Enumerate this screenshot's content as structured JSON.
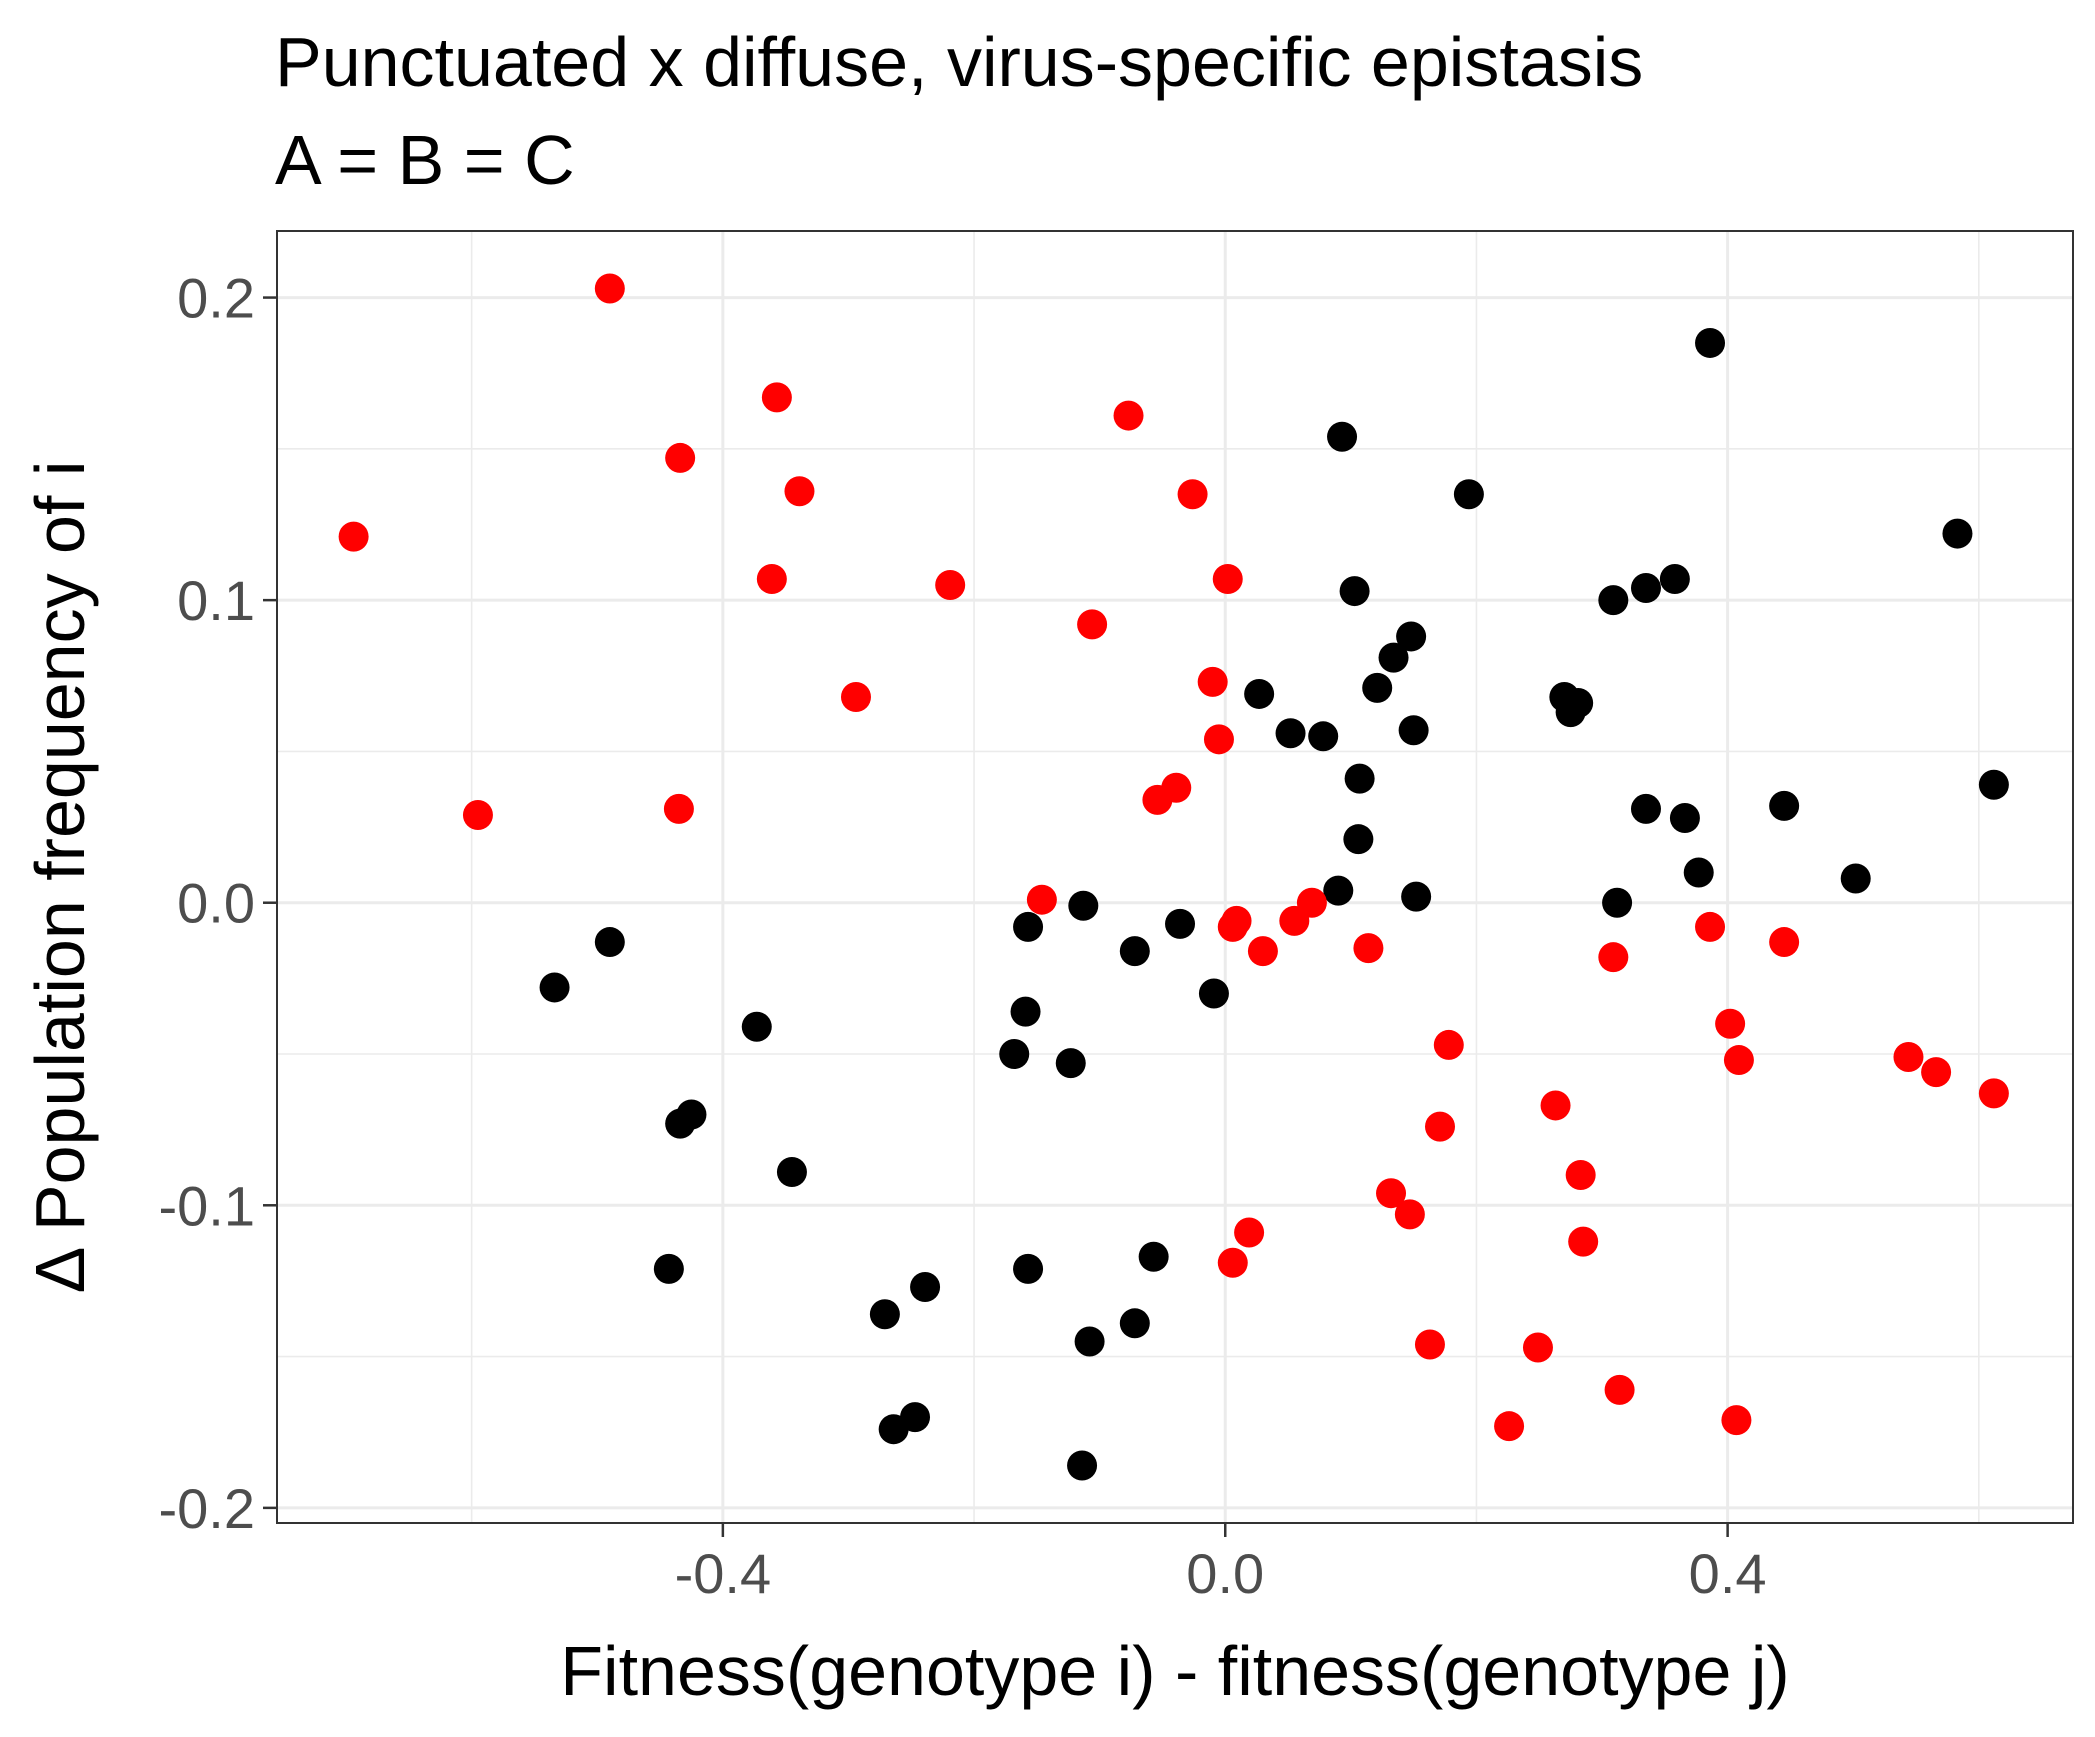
{
  "chart_data": {
    "type": "scatter",
    "title": "Punctuated x diffuse, virus-specific epistasis",
    "subtitle": "A = B = C",
    "xlabel": "Fitness(genotype i) - fitness(genotype j)",
    "ylabel": "Δ Population frequency of i",
    "xlim": [
      -0.755,
      0.675
    ],
    "ylim": [
      -0.205,
      0.222
    ],
    "x_ticks": [
      -0.4,
      0.0,
      0.4
    ],
    "x_tick_labels": [
      "-0.4",
      "0.0",
      "0.4"
    ],
    "y_ticks": [
      -0.2,
      -0.1,
      0.0,
      0.1,
      0.2
    ],
    "y_tick_labels": [
      "-0.2",
      "-0.1",
      "0.0",
      "0.1",
      "0.2"
    ],
    "grid": true,
    "legend": "none",
    "series": [
      {
        "color": "#000000",
        "points": [
          [
            0.386,
            0.185
          ],
          [
            0.093,
            0.154
          ],
          [
            0.194,
            0.135
          ],
          [
            0.583,
            0.122
          ],
          [
            0.103,
            0.103
          ],
          [
            0.358,
            0.107
          ],
          [
            0.335,
            0.104
          ],
          [
            0.309,
            0.1
          ],
          [
            0.148,
            0.088
          ],
          [
            0.134,
            0.081
          ],
          [
            0.121,
            0.071
          ],
          [
            0.027,
            0.069
          ],
          [
            0.27,
            0.068
          ],
          [
            0.281,
            0.066
          ],
          [
            0.275,
            0.063
          ],
          [
            0.052,
            0.056
          ],
          [
            0.078,
            0.055
          ],
          [
            0.15,
            0.057
          ],
          [
            0.107,
            0.041
          ],
          [
            0.612,
            0.039
          ],
          [
            0.335,
            0.031
          ],
          [
            0.366,
            0.028
          ],
          [
            0.445,
            0.032
          ],
          [
            0.106,
            0.021
          ],
          [
            0.377,
            0.01
          ],
          [
            0.502,
            0.008
          ],
          [
            0.09,
            0.004
          ],
          [
            0.152,
            0.002
          ],
          [
            0.312,
            0.0
          ],
          [
            -0.113,
            -0.001
          ],
          [
            -0.157,
            -0.008
          ],
          [
            -0.036,
            -0.007
          ],
          [
            -0.072,
            -0.016
          ],
          [
            -0.49,
            -0.013
          ],
          [
            -0.534,
            -0.028
          ],
          [
            -0.009,
            -0.03
          ],
          [
            -0.159,
            -0.036
          ],
          [
            -0.373,
            -0.041
          ],
          [
            -0.168,
            -0.05
          ],
          [
            -0.123,
            -0.053
          ],
          [
            -0.425,
            -0.07
          ],
          [
            -0.434,
            -0.073
          ],
          [
            -0.345,
            -0.089
          ],
          [
            -0.443,
            -0.121
          ],
          [
            -0.157,
            -0.121
          ],
          [
            -0.057,
            -0.117
          ],
          [
            -0.239,
            -0.127
          ],
          [
            -0.271,
            -0.136
          ],
          [
            -0.072,
            -0.139
          ],
          [
            -0.108,
            -0.145
          ],
          [
            -0.247,
            -0.17
          ],
          [
            -0.264,
            -0.174
          ],
          [
            -0.114,
            -0.186
          ]
        ]
      },
      {
        "color": "#ff0000",
        "points": [
          [
            -0.49,
            0.203
          ],
          [
            -0.357,
            0.167
          ],
          [
            -0.077,
            0.161
          ],
          [
            -0.434,
            0.147
          ],
          [
            -0.339,
            0.136
          ],
          [
            -0.026,
            0.135
          ],
          [
            -0.694,
            0.121
          ],
          [
            -0.361,
            0.107
          ],
          [
            -0.219,
            0.105
          ],
          [
            0.002,
            0.107
          ],
          [
            -0.106,
            0.092
          ],
          [
            -0.294,
            0.068
          ],
          [
            -0.01,
            0.073
          ],
          [
            -0.005,
            0.054
          ],
          [
            -0.039,
            0.038
          ],
          [
            -0.054,
            0.034
          ],
          [
            -0.595,
            0.029
          ],
          [
            -0.435,
            0.031
          ],
          [
            -0.146,
            0.001
          ],
          [
            0.069,
            -0.0
          ],
          [
            0.009,
            -0.006
          ],
          [
            0.006,
            -0.008
          ],
          [
            0.055,
            -0.006
          ],
          [
            0.03,
            -0.016
          ],
          [
            0.114,
            -0.015
          ],
          [
            0.309,
            -0.018
          ],
          [
            0.386,
            -0.008
          ],
          [
            0.445,
            -0.013
          ],
          [
            0.402,
            -0.04
          ],
          [
            0.409,
            -0.052
          ],
          [
            0.178,
            -0.047
          ],
          [
            0.544,
            -0.051
          ],
          [
            0.566,
            -0.056
          ],
          [
            0.612,
            -0.063
          ],
          [
            0.263,
            -0.067
          ],
          [
            0.171,
            -0.074
          ],
          [
            0.283,
            -0.09
          ],
          [
            0.132,
            -0.096
          ],
          [
            0.147,
            -0.103
          ],
          [
            0.285,
            -0.112
          ],
          [
            0.019,
            -0.109
          ],
          [
            0.006,
            -0.119
          ],
          [
            0.163,
            -0.146
          ],
          [
            0.249,
            -0.147
          ],
          [
            0.314,
            -0.161
          ],
          [
            0.407,
            -0.171
          ],
          [
            0.226,
            -0.173
          ]
        ]
      }
    ]
  }
}
